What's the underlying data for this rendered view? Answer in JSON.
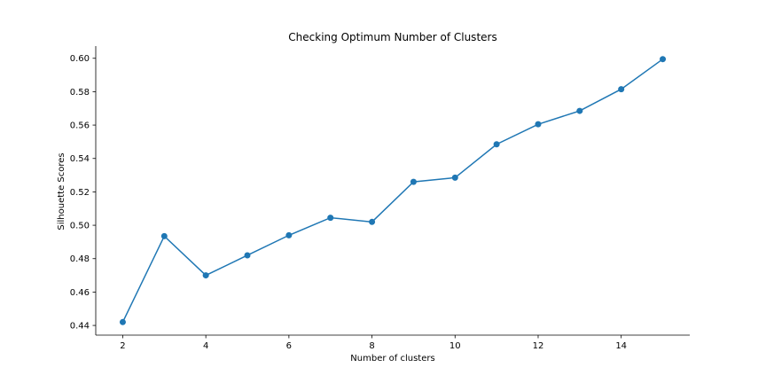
{
  "chart_data": {
    "type": "line",
    "title": "Checking Optimum Number of Clusters",
    "xlabel": "Number of clusters",
    "ylabel": "Silhouette Scores",
    "x": [
      2,
      3,
      4,
      5,
      6,
      7,
      8,
      9,
      10,
      11,
      12,
      13,
      14,
      15
    ],
    "series": [
      {
        "values": [
          0.442,
          0.4935,
          0.47,
          0.482,
          0.494,
          0.5045,
          0.502,
          0.526,
          0.5285,
          0.5485,
          0.5605,
          0.5685,
          0.5815,
          0.5995
        ],
        "color": "#1f77b4",
        "marker": "circle"
      }
    ],
    "xlim": [
      1.35,
      15.65
    ],
    "ylim": [
      0.4342,
      0.6073
    ],
    "xticks": [
      2,
      4,
      6,
      8,
      10,
      12,
      14
    ],
    "yticks": [
      0.44,
      0.46,
      0.48,
      0.5,
      0.52,
      0.54,
      0.56,
      0.58,
      0.6
    ],
    "xtick_labels": [
      "2",
      "4",
      "6",
      "8",
      "10",
      "12",
      "14"
    ],
    "ytick_labels": [
      "0.44",
      "0.46",
      "0.48",
      "0.50",
      "0.52",
      "0.54",
      "0.56",
      "0.58",
      "0.60"
    ],
    "grid": false,
    "spines": "left-bottom"
  }
}
